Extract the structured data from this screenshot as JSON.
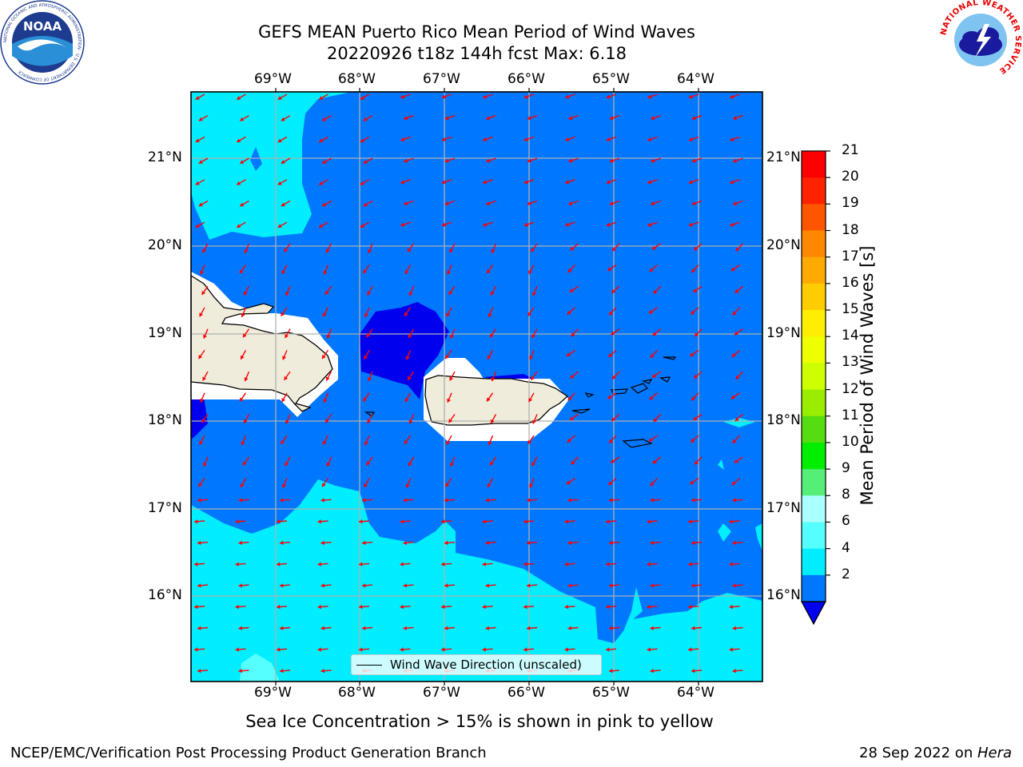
{
  "header": {
    "title_line1": "GEFS MEAN Puerto Rico Mean Period of Wind Waves",
    "title_line2": "20220926 t18z 144h fcst   Max: 6.18"
  },
  "map": {
    "lon_labels": [
      "69°W",
      "68°W",
      "67°W",
      "66°W",
      "65°W",
      "64°W"
    ],
    "lat_labels": [
      "21°N",
      "20°N",
      "19°N",
      "18°N",
      "17°N",
      "16°N"
    ],
    "legend_label": "Wind Wave Direction (unscaled)",
    "colors": {
      "dark_blue": "#0000ee",
      "blue": "#0077ff",
      "cyan": "#00eeff",
      "light_cyan": "#55ffff",
      "land": "#efecdb",
      "arrow": "#ff0000",
      "grid": "#b0b0b0"
    }
  },
  "colorbar": {
    "label": "Mean Period of Wind Waves [s]",
    "ticks": [
      "21",
      "20",
      "19",
      "18",
      "17",
      "16",
      "15",
      "14",
      "13",
      "12",
      "11",
      "10",
      "9",
      "8",
      "6",
      "4",
      "2"
    ],
    "bands": [
      "#ff0000",
      "#ff2200",
      "#ff5500",
      "#ff8800",
      "#ffaa00",
      "#ffcc00",
      "#ffee00",
      "#eeff00",
      "#ccff00",
      "#99ee00",
      "#55dd11",
      "#00ee00",
      "#55ee77",
      "#aaffff",
      "#55ffff",
      "#00eeff",
      "#0077ff"
    ],
    "under_color": "#0000ee"
  },
  "notes": {
    "sea_ice": "Sea Ice Concentration > 15% is shown in pink to yellow"
  },
  "footer": {
    "left": "NCEP/EMC/Verification Post Processing Product Generation Branch",
    "date": "28 Sep 2022 on ",
    "machine": "Hera"
  },
  "logos": {
    "noaa_text": "NOAA",
    "noaa_ring": "NATIONAL OCEANIC AND ATMOSPHERIC ADMINISTRATION · U.S. DEPARTMENT OF COMMERCE",
    "nws_ring": "NATIONAL WEATHER SERVICE"
  }
}
